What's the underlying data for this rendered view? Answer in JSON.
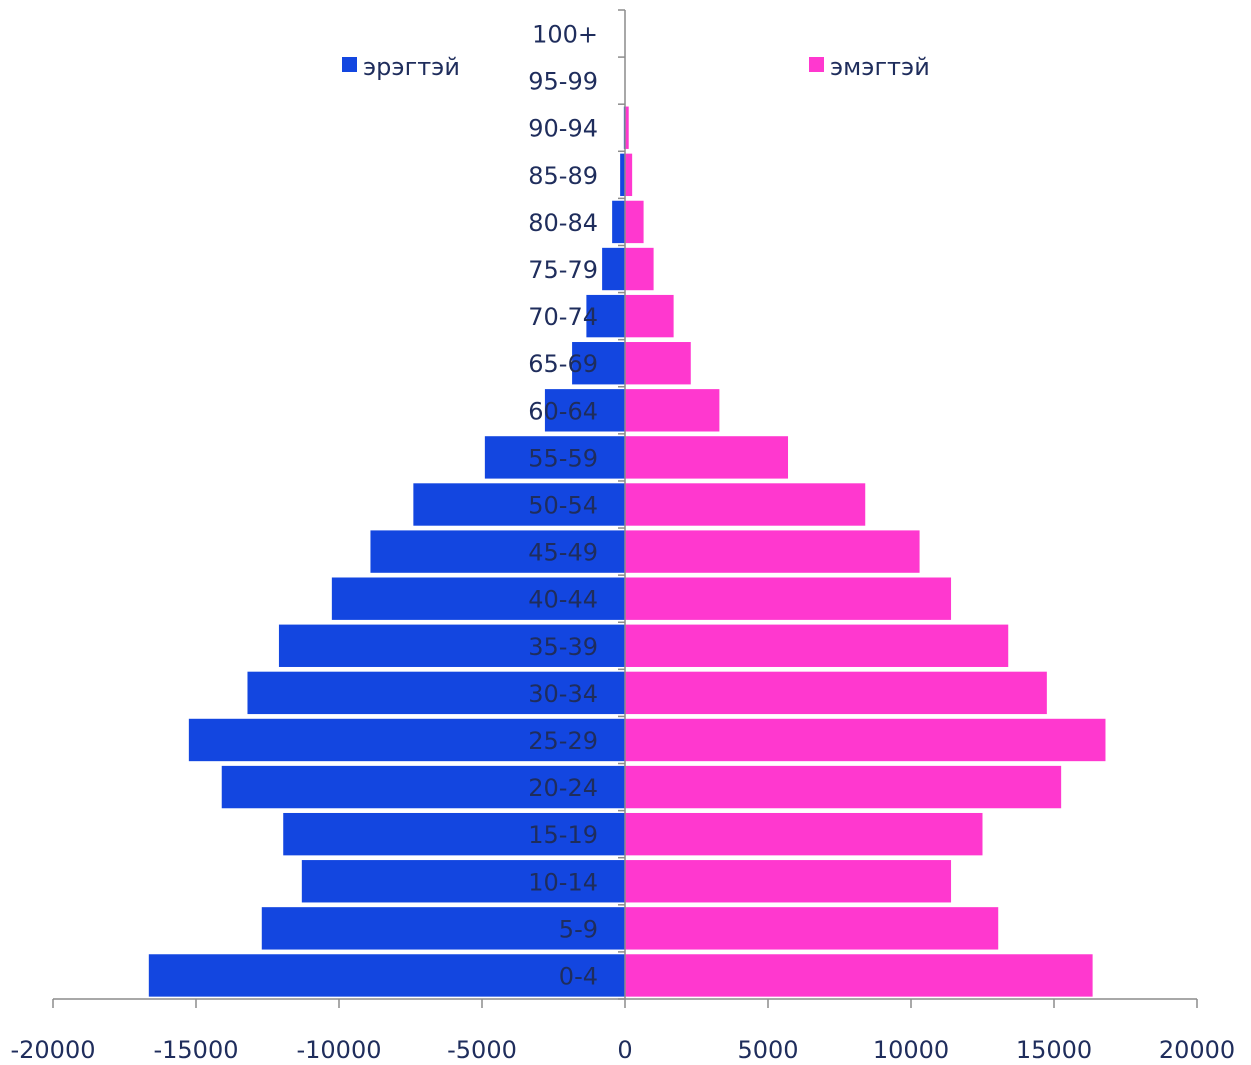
{
  "chart_data": {
    "type": "bar",
    "orientation": "horizontal",
    "title": "",
    "xlabel": "",
    "ylabel": "",
    "categories": [
      "0-4",
      "5-9",
      "10-14",
      "15-19",
      "20-24",
      "25-29",
      "30-34",
      "35-39",
      "40-44",
      "45-49",
      "50-54",
      "55-59",
      "60-64",
      "65-69",
      "70-74",
      "75-79",
      "80-84",
      "85-89",
      "90-94",
      "95-99",
      "100+"
    ],
    "series": [
      {
        "name": "эрэгтэй",
        "color": "#1346e0",
        "values": [
          -16650,
          -12700,
          -11300,
          -11950,
          -14100,
          -15250,
          -13200,
          -12100,
          -10250,
          -8900,
          -7400,
          -4900,
          -2800,
          -1850,
          -1350,
          -800,
          -450,
          -170,
          -40,
          -5,
          0
        ]
      },
      {
        "name": "эмэгтэй",
        "color": "#ff38cf",
        "values": [
          16350,
          13050,
          11400,
          12500,
          15250,
          16800,
          14750,
          13400,
          11400,
          10300,
          8400,
          5700,
          3300,
          2300,
          1700,
          1000,
          650,
          250,
          130,
          10,
          0
        ]
      }
    ],
    "xlim": [
      -20000,
      20000
    ],
    "x_ticks": [
      -20000,
      -15000,
      -10000,
      -5000,
      0,
      5000,
      10000,
      15000,
      20000
    ],
    "grid": false,
    "legend": "top"
  }
}
